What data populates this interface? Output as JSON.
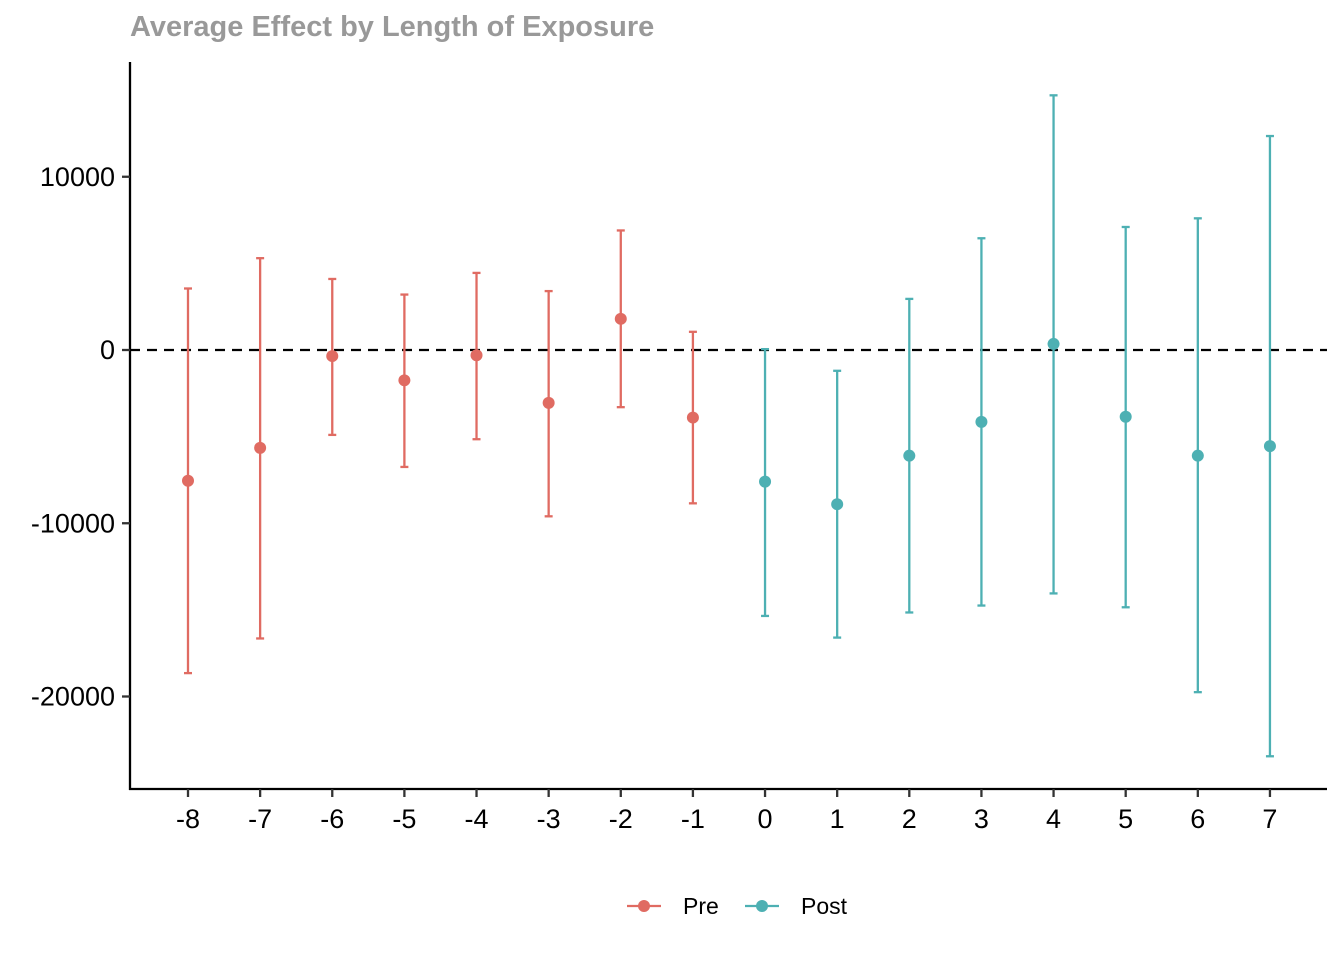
{
  "chart_data": {
    "type": "scatter",
    "title": "Average Effect by Length of Exposure",
    "xlabel": "",
    "ylabel": "",
    "x_categories": [
      "-8",
      "-7",
      "-6",
      "-5",
      "-4",
      "-3",
      "-2",
      "-1",
      "0",
      "1",
      "2",
      "3",
      "4",
      "5",
      "6",
      "7"
    ],
    "y_ticks": [
      10000,
      0,
      -10000,
      -20000
    ],
    "y_tick_labels": [
      "10000",
      "0",
      "-10000",
      "-20000"
    ],
    "ylim": [
      -25000,
      16500
    ],
    "reference_line": {
      "y": 0,
      "style": "dashed"
    },
    "grid": false,
    "legend_position": "bottom",
    "series": [
      {
        "name": "Pre",
        "color": "#E06B62",
        "points": [
          {
            "x": -8,
            "y": -7550,
            "lower": -18650,
            "upper": 3550
          },
          {
            "x": -7,
            "y": -5650,
            "lower": -16650,
            "upper": 5300
          },
          {
            "x": -6,
            "y": -350,
            "lower": -4900,
            "upper": 4100
          },
          {
            "x": -5,
            "y": -1750,
            "lower": -6750,
            "upper": 3200
          },
          {
            "x": -4,
            "y": -300,
            "lower": -5150,
            "upper": 4450
          },
          {
            "x": -3,
            "y": -3050,
            "lower": -9600,
            "upper": 3400
          },
          {
            "x": -2,
            "y": 1800,
            "lower": -3300,
            "upper": 6900
          },
          {
            "x": -1,
            "y": -3900,
            "lower": -8850,
            "upper": 1050
          }
        ]
      },
      {
        "name": "Post",
        "color": "#4DB0B3",
        "points": [
          {
            "x": 0,
            "y": -7600,
            "lower": -15350,
            "upper": 50
          },
          {
            "x": 1,
            "y": -8900,
            "lower": -16600,
            "upper": -1200
          },
          {
            "x": 2,
            "y": -6100,
            "lower": -15150,
            "upper": 2950
          },
          {
            "x": 3,
            "y": -4150,
            "lower": -14750,
            "upper": 6450
          },
          {
            "x": 4,
            "y": 350,
            "lower": -14050,
            "upper": 14700
          },
          {
            "x": 5,
            "y": -3850,
            "lower": -14850,
            "upper": 7100
          },
          {
            "x": 6,
            "y": -6100,
            "lower": -19750,
            "upper": 7600
          },
          {
            "x": 7,
            "y": -5550,
            "lower": -23450,
            "upper": 12350
          }
        ]
      }
    ]
  }
}
